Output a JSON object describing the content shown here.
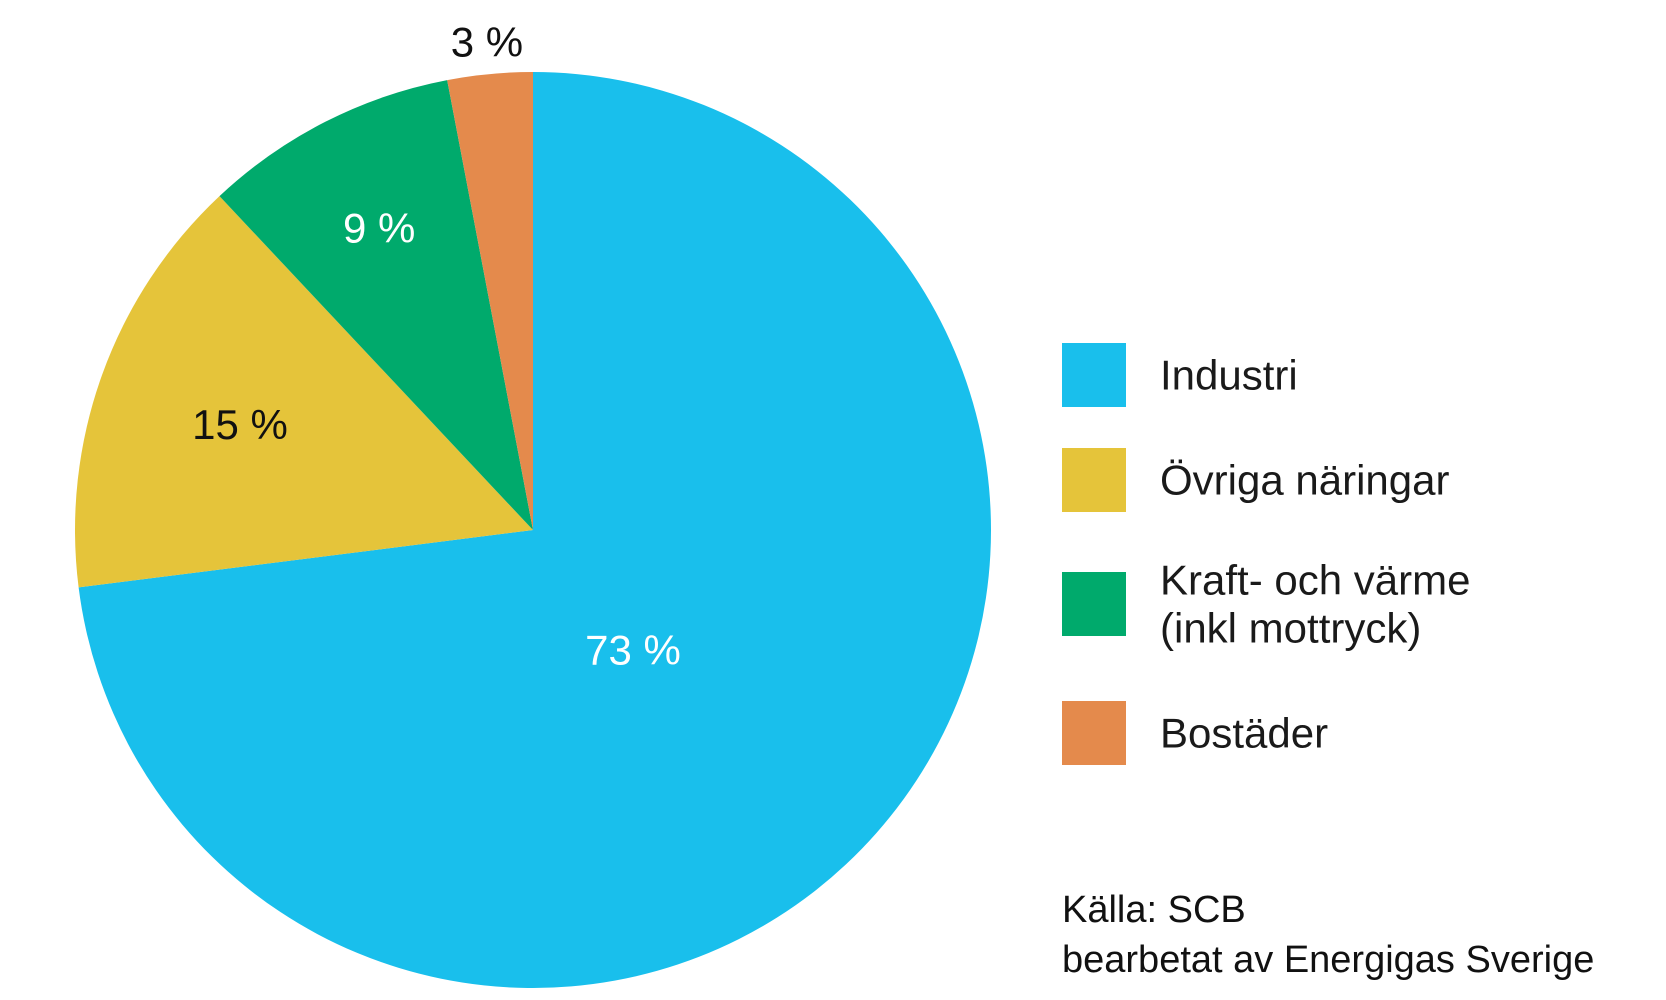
{
  "chart_data": {
    "type": "pie",
    "start": "top",
    "direction": "clockwise",
    "slices": [
      {
        "label": "Industri",
        "value": 73,
        "value_label": "73 %",
        "color": "#19bfec",
        "label_color": "#ffffff"
      },
      {
        "label": "Övriga näringar",
        "value": 15,
        "value_label": "15 %",
        "color": "#e5c43a",
        "label_color": "#111111"
      },
      {
        "label": "Kraft- och värme\n(inkl mottryck)",
        "value": 9,
        "value_label": "9 %",
        "color": "#00aa6c",
        "label_color": "#ffffff"
      },
      {
        "label": "Bostäder",
        "value": 3,
        "value_label": "3 %",
        "color": "#e48a4c",
        "label_color": "#111111"
      }
    ],
    "legend_position": "right"
  },
  "legend": {
    "items": [
      {
        "lines": [
          "Industri"
        ],
        "color": "#19bfec"
      },
      {
        "lines": [
          "Övriga näringar"
        ],
        "color": "#e5c43a"
      },
      {
        "lines": [
          "Kraft- och värme",
          "(inkl mottryck)"
        ],
        "color": "#00aa6c"
      },
      {
        "lines": [
          "Bostäder"
        ],
        "color": "#e48a4c"
      }
    ]
  },
  "source": {
    "line1": "Källa: SCB",
    "line2": "bearbetat av Energigas Sverige"
  }
}
